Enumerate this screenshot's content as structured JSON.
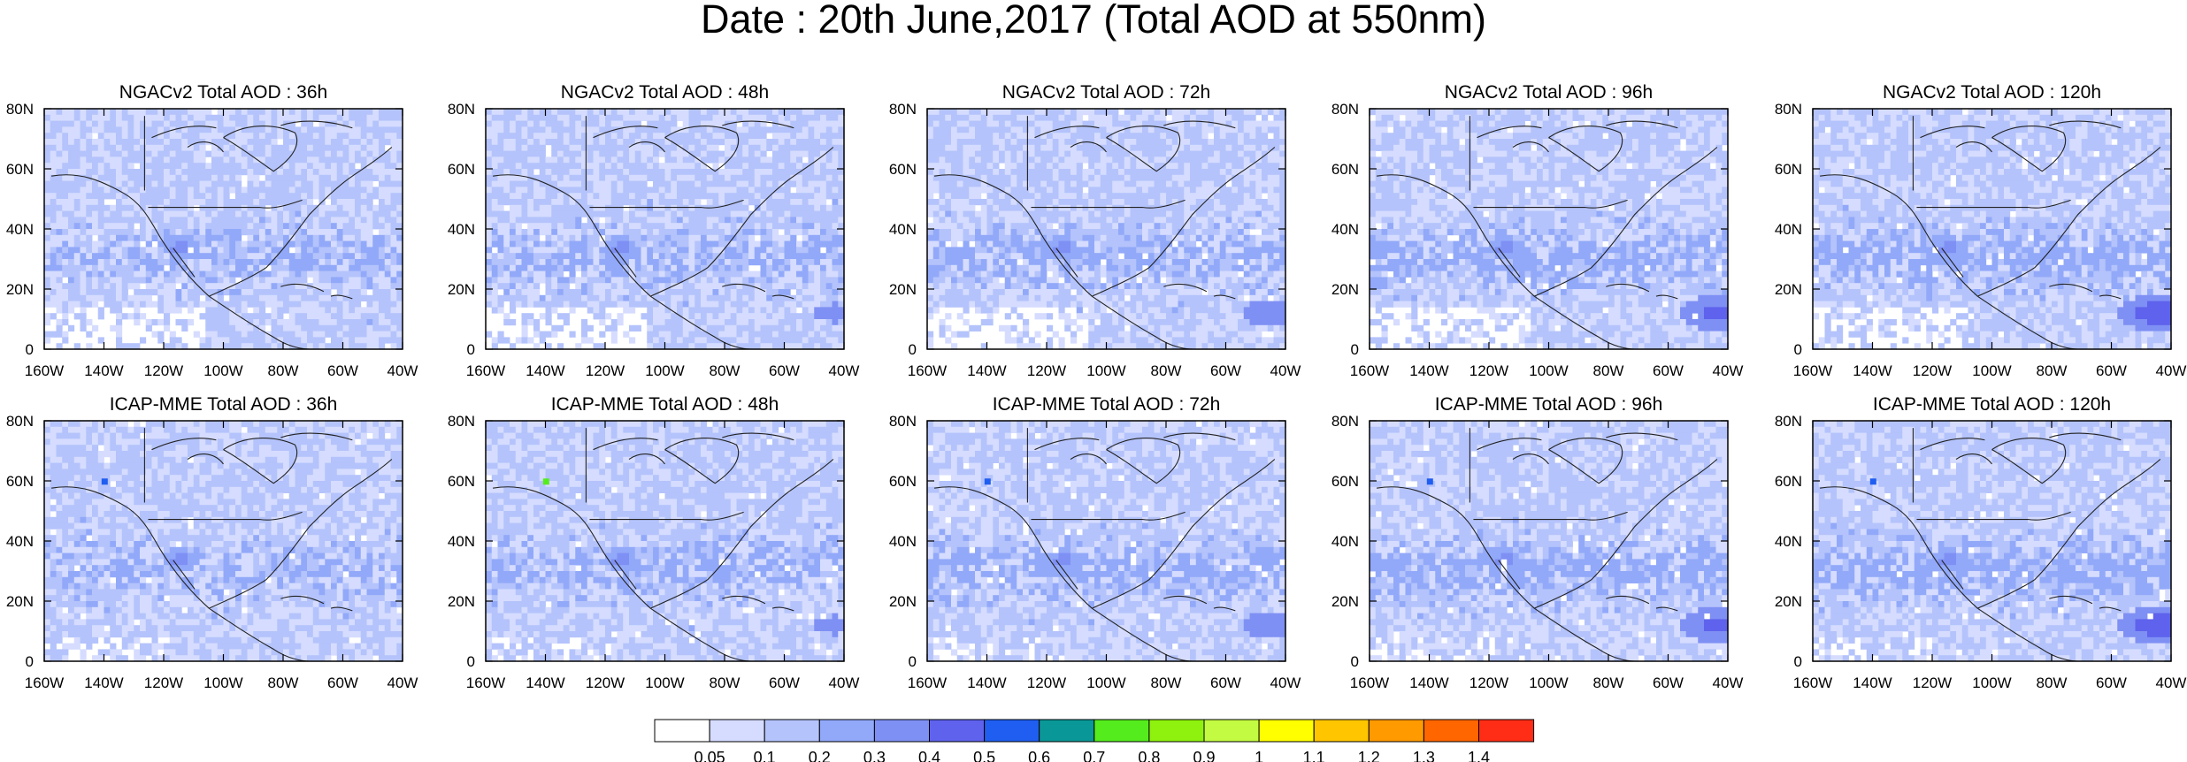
{
  "title": "Date : 20th June,2017 (Total AOD at 550nm)",
  "chart_data": {
    "type": "heatmap",
    "panels": [
      {
        "title": "NGACv2 Total AOD : 36h",
        "model": "NGACv2",
        "forecast_hour": 36
      },
      {
        "title": "NGACv2 Total AOD : 48h",
        "model": "NGACv2",
        "forecast_hour": 48
      },
      {
        "title": "NGACv2 Total AOD : 72h",
        "model": "NGACv2",
        "forecast_hour": 72
      },
      {
        "title": "NGACv2 Total AOD : 96h",
        "model": "NGACv2",
        "forecast_hour": 96
      },
      {
        "title": "NGACv2 Total AOD : 120h",
        "model": "NGACv2",
        "forecast_hour": 120
      },
      {
        "title": "ICAP-MME Total AOD : 36h",
        "model": "ICAP-MME",
        "forecast_hour": 36
      },
      {
        "title": "ICAP-MME Total AOD : 48h",
        "model": "ICAP-MME",
        "forecast_hour": 48
      },
      {
        "title": "ICAP-MME Total AOD : 72h",
        "model": "ICAP-MME",
        "forecast_hour": 72
      },
      {
        "title": "ICAP-MME Total AOD : 96h",
        "model": "ICAP-MME",
        "forecast_hour": 96
      },
      {
        "title": "ICAP-MME Total AOD : 120h",
        "model": "ICAP-MME",
        "forecast_hour": 120
      }
    ],
    "x_ticks": [
      "160W",
      "140W",
      "120W",
      "100W",
      "80W",
      "60W",
      "40W"
    ],
    "y_ticks": [
      "0",
      "20N",
      "40N",
      "60N",
      "80N"
    ],
    "xlim": [
      -160,
      -40
    ],
    "ylim": [
      0,
      80
    ],
    "colorbar": {
      "levels": [
        "0.05",
        "0.1",
        "0.2",
        "0.3",
        "0.4",
        "0.5",
        "0.6",
        "0.7",
        "0.8",
        "0.9",
        "1",
        "1.1",
        "1.2",
        "1.3",
        "1.4"
      ],
      "colors": [
        "#ffffff",
        "#d5dcff",
        "#b4c3fb",
        "#92a9f9",
        "#7f90f4",
        "#5e62ec",
        "#1f5ef0",
        "#0a9797",
        "#55ec1e",
        "#8ff20e",
        "#c3fa42",
        "#ffff00",
        "#ffc600",
        "#ff9a00",
        "#ff6600",
        "#ff2d16"
      ]
    }
  }
}
